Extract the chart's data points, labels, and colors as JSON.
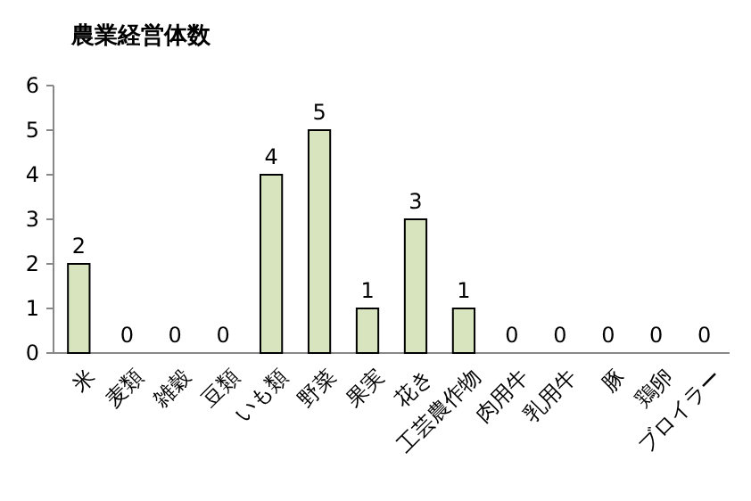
{
  "chart_data": {
    "type": "bar",
    "title": "農業経営体数",
    "categories": [
      "米",
      "麦類",
      "雑穀",
      "豆類",
      "いも類",
      "野菜",
      "果実",
      "花き",
      "工芸農作物",
      "肉用牛",
      "乳用牛",
      "豚",
      "鶏卵",
      "ブロイラー"
    ],
    "values": [
      2,
      0,
      0,
      0,
      4,
      5,
      1,
      3,
      1,
      0,
      0,
      0,
      0,
      0
    ],
    "color": "#d7e4bd",
    "ylim": [
      0,
      6
    ],
    "yticks": [
      0,
      1,
      2,
      3,
      4,
      5,
      6
    ],
    "data_labels": true,
    "grid": false
  }
}
